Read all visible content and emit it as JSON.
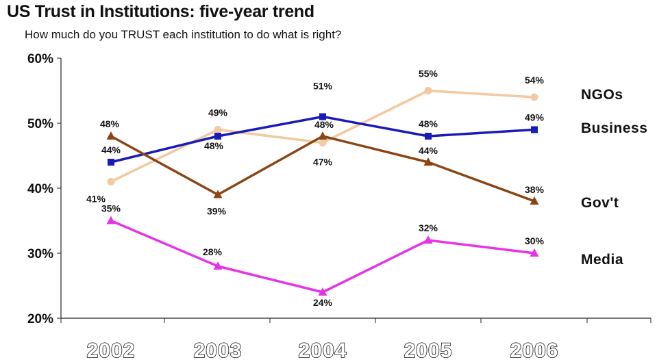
{
  "title": "US Trust in Institutions: five-year trend",
  "subtitle": "How much do you TRUST each institution to do what is right?",
  "chart_data": {
    "type": "line",
    "x": [
      "2002",
      "2003",
      "2004",
      "2005",
      "2006"
    ],
    "ylim": [
      20,
      60
    ],
    "yticks": [
      "20%",
      "30%",
      "40%",
      "50%",
      "60%"
    ],
    "grid": false,
    "legend": "series labels at right end of lines",
    "series": [
      {
        "name": "NGOs",
        "values": [
          41,
          49,
          47,
          55,
          54
        ],
        "labels": [
          "41%",
          "49%",
          "47%",
          "55%",
          "54%"
        ],
        "color": "#f2c9a0",
        "marker": "circle"
      },
      {
        "name": "Business",
        "values": [
          44,
          48,
          51,
          48,
          49
        ],
        "labels": [
          "44%",
          "48%",
          "51%",
          "48%",
          "49%"
        ],
        "color": "#1a1ab8",
        "marker": "square"
      },
      {
        "name": "Gov't",
        "values": [
          48,
          39,
          48,
          44,
          38
        ],
        "labels": [
          "48%",
          "39%",
          "48%",
          "44%",
          "38%"
        ],
        "color": "#8b4513",
        "marker": "triangle"
      },
      {
        "name": "Media",
        "values": [
          35,
          28,
          24,
          32,
          30
        ],
        "labels": [
          "35%",
          "28%",
          "24%",
          "32%",
          "30%"
        ],
        "color": "#e633e6",
        "marker": "triangle"
      }
    ]
  }
}
